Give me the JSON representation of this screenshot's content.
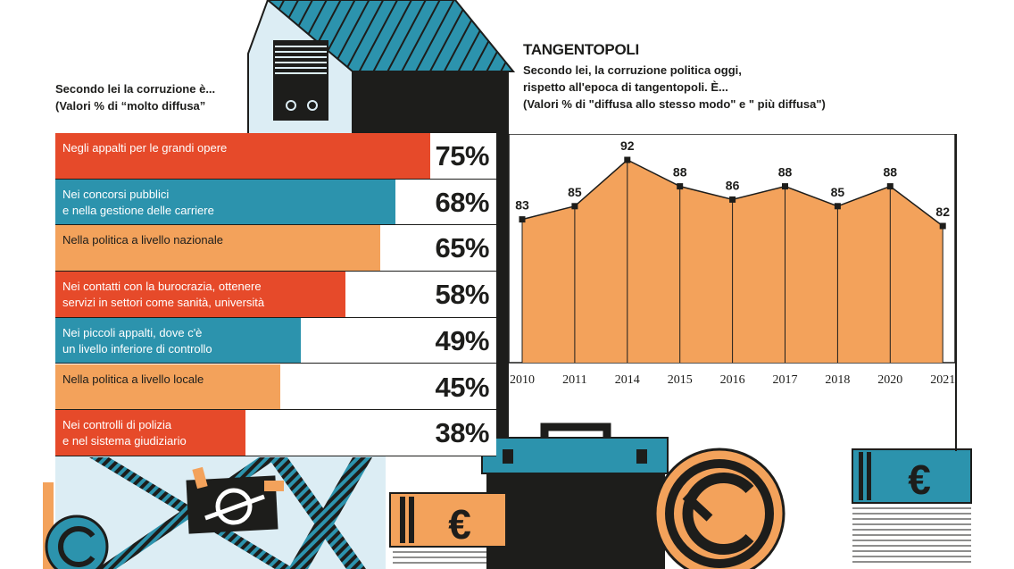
{
  "left_panel": {
    "title_line1": "Secondo lei la corruzione è...",
    "title_line2": "(Valori % di “molto diffusa”"
  },
  "right_panel": {
    "heading": "TANGENTOPOLI",
    "subtitle_line1": "Secondo lei, la corruzione politica oggi,",
    "subtitle_line2": "rispetto all'epoca di tangentopoli. È...",
    "subtitle_line3": "(Valori % di \"diffusa allo stesso modo\" e \" più diffusa\")"
  },
  "colors": {
    "red": "#e64a2a",
    "teal": "#2c93ad",
    "orange": "#f3a25b",
    "dark": "#1d1d1b",
    "light_blue": "#dcedf4"
  },
  "chart_data": [
    {
      "type": "bar",
      "orientation": "horizontal",
      "categories": [
        "Negli appalti per le grandi opere",
        "Nei concorsi pubblici\ne nella gestione delle carriere",
        "Nella politica a livello nazionale",
        "Nei contatti con la burocrazia, ottenere\nservizi in settori come sanità, università",
        "Nei piccoli appalti, dove c'è\nun livello inferiore di controllo",
        "Nella politica a livello locale",
        "Nei controlli di polizia\ne nel sistema giudiziario"
      ],
      "values": [
        75,
        68,
        65,
        58,
        49,
        45,
        38
      ],
      "value_labels": [
        "75%",
        "68%",
        "65%",
        "58%",
        "49%",
        "45%",
        "38%"
      ],
      "bar_colors": [
        "#e64a2a",
        "#2c93ad",
        "#f3a25b",
        "#e64a2a",
        "#2c93ad",
        "#f3a25b",
        "#e64a2a"
      ],
      "xlim": [
        0,
        100
      ]
    },
    {
      "type": "area",
      "x": [
        "2010",
        "2011",
        "2014",
        "2015",
        "2016",
        "2017",
        "2018",
        "2020",
        "2021"
      ],
      "values": [
        83,
        85,
        92,
        88,
        86,
        88,
        85,
        88,
        82
      ],
      "value_labels": [
        "83",
        "85",
        "92",
        "88",
        "86",
        "88",
        "85",
        "88",
        "82"
      ],
      "ylim": [
        0,
        92
      ],
      "fill_color": "#f3a25b",
      "grid": "vertical"
    }
  ]
}
